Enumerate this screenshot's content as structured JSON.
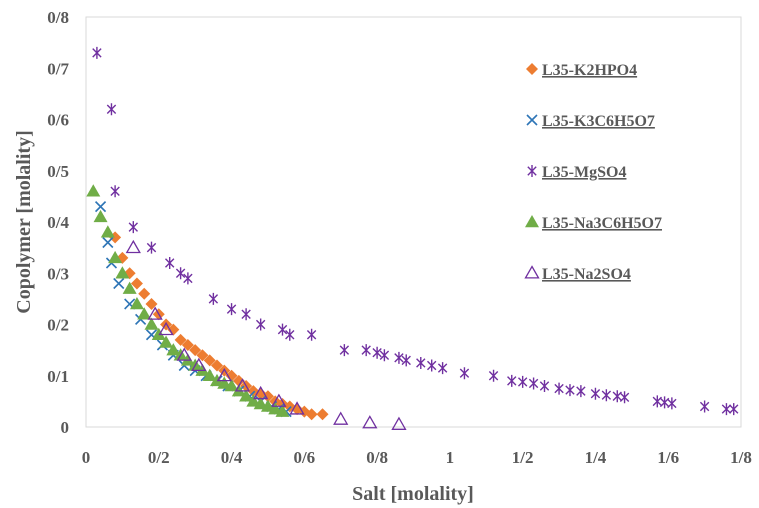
{
  "chart_data": {
    "type": "scatter",
    "xlabel": "Salt  [molality]",
    "ylabel": "Copolymer  [molality]",
    "xlim": [
      0,
      1.8
    ],
    "ylim": [
      0,
      0.8
    ],
    "x_ticks": [
      {
        "value": 0,
        "label": "0"
      },
      {
        "value": 0.2,
        "label": "0/2"
      },
      {
        "value": 0.4,
        "label": "0/4"
      },
      {
        "value": 0.6,
        "label": "0/6"
      },
      {
        "value": 0.8,
        "label": "0/8"
      },
      {
        "value": 1.0,
        "label": "1"
      },
      {
        "value": 1.2,
        "label": "1/2"
      },
      {
        "value": 1.4,
        "label": "1/4"
      },
      {
        "value": 1.6,
        "label": "1/6"
      },
      {
        "value": 1.8,
        "label": "1/8"
      }
    ],
    "y_ticks": [
      {
        "value": 0,
        "label": "0"
      },
      {
        "value": 0.1,
        "label": "0/1"
      },
      {
        "value": 0.2,
        "label": "0/2"
      },
      {
        "value": 0.3,
        "label": "0/3"
      },
      {
        "value": 0.4,
        "label": "0/4"
      },
      {
        "value": 0.5,
        "label": "0/5"
      },
      {
        "value": 0.6,
        "label": "0/6"
      },
      {
        "value": 0.7,
        "label": "0/7"
      },
      {
        "value": 0.8,
        "label": "0/8"
      }
    ],
    "legend_position": "right",
    "series": [
      {
        "name": "L35-K2HPO4",
        "marker": "diamond",
        "color": "#ED7D31",
        "points": [
          [
            0.08,
            0.37
          ],
          [
            0.1,
            0.33
          ],
          [
            0.12,
            0.3
          ],
          [
            0.14,
            0.28
          ],
          [
            0.16,
            0.26
          ],
          [
            0.18,
            0.24
          ],
          [
            0.2,
            0.22
          ],
          [
            0.22,
            0.2
          ],
          [
            0.24,
            0.19
          ],
          [
            0.26,
            0.17
          ],
          [
            0.28,
            0.16
          ],
          [
            0.3,
            0.15
          ],
          [
            0.32,
            0.14
          ],
          [
            0.34,
            0.13
          ],
          [
            0.36,
            0.12
          ],
          [
            0.38,
            0.11
          ],
          [
            0.4,
            0.1
          ],
          [
            0.42,
            0.09
          ],
          [
            0.44,
            0.08
          ],
          [
            0.46,
            0.07
          ],
          [
            0.48,
            0.065
          ],
          [
            0.5,
            0.06
          ],
          [
            0.52,
            0.05
          ],
          [
            0.54,
            0.045
          ],
          [
            0.56,
            0.04
          ],
          [
            0.58,
            0.035
          ],
          [
            0.6,
            0.03
          ],
          [
            0.62,
            0.025
          ],
          [
            0.65,
            0.025
          ]
        ]
      },
      {
        "name": "L35-K3C6H5O7",
        "marker": "x",
        "color": "#2E75B6",
        "points": [
          [
            0.04,
            0.43
          ],
          [
            0.06,
            0.36
          ],
          [
            0.07,
            0.32
          ],
          [
            0.09,
            0.28
          ],
          [
            0.12,
            0.24
          ],
          [
            0.15,
            0.21
          ],
          [
            0.18,
            0.18
          ],
          [
            0.21,
            0.16
          ],
          [
            0.24,
            0.14
          ],
          [
            0.27,
            0.12
          ],
          [
            0.3,
            0.11
          ],
          [
            0.33,
            0.1
          ],
          [
            0.36,
            0.09
          ],
          [
            0.39,
            0.08
          ],
          [
            0.42,
            0.07
          ],
          [
            0.45,
            0.06
          ],
          [
            0.48,
            0.05
          ],
          [
            0.51,
            0.04
          ],
          [
            0.53,
            0.035
          ],
          [
            0.55,
            0.03
          ]
        ]
      },
      {
        "name": "L35-MgSO4",
        "marker": "star",
        "color": "#7030A0",
        "points": [
          [
            0.03,
            0.73
          ],
          [
            0.07,
            0.62
          ],
          [
            0.08,
            0.46
          ],
          [
            0.13,
            0.39
          ],
          [
            0.18,
            0.35
          ],
          [
            0.23,
            0.32
          ],
          [
            0.26,
            0.3
          ],
          [
            0.28,
            0.29
          ],
          [
            0.35,
            0.25
          ],
          [
            0.4,
            0.23
          ],
          [
            0.44,
            0.22
          ],
          [
            0.48,
            0.2
          ],
          [
            0.54,
            0.19
          ],
          [
            0.56,
            0.18
          ],
          [
            0.62,
            0.18
          ],
          [
            0.71,
            0.15
          ],
          [
            0.77,
            0.15
          ],
          [
            0.8,
            0.145
          ],
          [
            0.82,
            0.14
          ],
          [
            0.86,
            0.135
          ],
          [
            0.88,
            0.13
          ],
          [
            0.92,
            0.125
          ],
          [
            0.95,
            0.12
          ],
          [
            0.98,
            0.115
          ],
          [
            1.04,
            0.105
          ],
          [
            1.12,
            0.1
          ],
          [
            1.17,
            0.09
          ],
          [
            1.2,
            0.088
          ],
          [
            1.23,
            0.085
          ],
          [
            1.26,
            0.08
          ],
          [
            1.3,
            0.075
          ],
          [
            1.33,
            0.072
          ],
          [
            1.36,
            0.07
          ],
          [
            1.4,
            0.065
          ],
          [
            1.43,
            0.062
          ],
          [
            1.46,
            0.06
          ],
          [
            1.48,
            0.058
          ],
          [
            1.57,
            0.05
          ],
          [
            1.59,
            0.048
          ],
          [
            1.61,
            0.046
          ],
          [
            1.7,
            0.04
          ],
          [
            1.76,
            0.035
          ],
          [
            1.78,
            0.035
          ]
        ]
      },
      {
        "name": "L35-Na3C6H5O7",
        "marker": "triangle",
        "color": "#70AD47",
        "points": [
          [
            0.02,
            0.46
          ],
          [
            0.04,
            0.41
          ],
          [
            0.06,
            0.38
          ],
          [
            0.08,
            0.33
          ],
          [
            0.1,
            0.3
          ],
          [
            0.12,
            0.27
          ],
          [
            0.14,
            0.24
          ],
          [
            0.16,
            0.22
          ],
          [
            0.18,
            0.2
          ],
          [
            0.2,
            0.18
          ],
          [
            0.22,
            0.165
          ],
          [
            0.24,
            0.15
          ],
          [
            0.26,
            0.14
          ],
          [
            0.28,
            0.13
          ],
          [
            0.3,
            0.12
          ],
          [
            0.32,
            0.11
          ],
          [
            0.34,
            0.1
          ],
          [
            0.36,
            0.09
          ],
          [
            0.38,
            0.085
          ],
          [
            0.4,
            0.08
          ],
          [
            0.42,
            0.07
          ],
          [
            0.44,
            0.06
          ],
          [
            0.46,
            0.05
          ],
          [
            0.48,
            0.045
          ],
          [
            0.5,
            0.04
          ],
          [
            0.52,
            0.035
          ],
          [
            0.54,
            0.03
          ]
        ]
      },
      {
        "name": "L35-Na2SO4",
        "marker": "triangle-open",
        "color": "#7030A0",
        "points": [
          [
            0.13,
            0.35
          ],
          [
            0.19,
            0.22
          ],
          [
            0.22,
            0.19
          ],
          [
            0.27,
            0.14
          ],
          [
            0.31,
            0.12
          ],
          [
            0.38,
            0.1
          ],
          [
            0.43,
            0.08
          ],
          [
            0.48,
            0.065
          ],
          [
            0.53,
            0.05
          ],
          [
            0.58,
            0.035
          ],
          [
            0.7,
            0.015
          ],
          [
            0.78,
            0.008
          ],
          [
            0.86,
            0.005
          ]
        ]
      }
    ]
  }
}
